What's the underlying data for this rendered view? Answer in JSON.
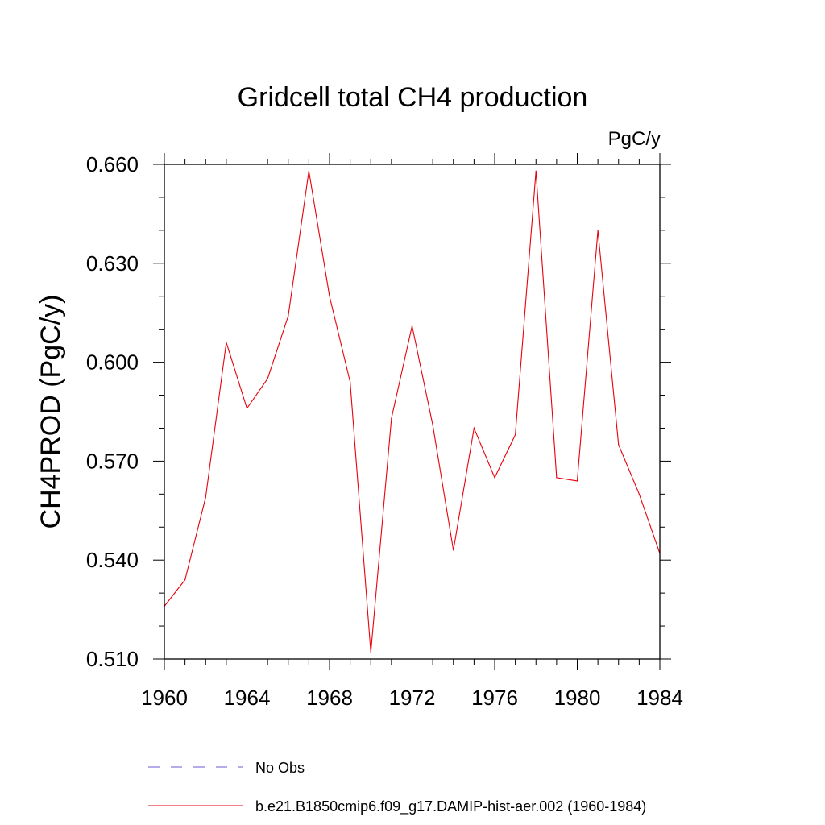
{
  "chart_data": {
    "type": "line",
    "title": "Gridcell total CH4 production",
    "units_label": "PgC/y",
    "ylabel": "CH4PROD  (PgC/y)",
    "xlabel": "",
    "xlim": [
      1960,
      1984
    ],
    "ylim": [
      0.51,
      0.66
    ],
    "x_ticks": [
      1960,
      1964,
      1968,
      1972,
      1976,
      1980,
      1984
    ],
    "x_tick_labels": [
      "1960",
      "1964",
      "1968",
      "1972",
      "1976",
      "1980",
      "1984"
    ],
    "y_ticks": [
      0.51,
      0.54,
      0.57,
      0.6,
      0.63,
      0.66
    ],
    "y_tick_labels": [
      "0.510",
      "0.540",
      "0.570",
      "0.600",
      "0.630",
      "0.660"
    ],
    "grid": false,
    "legend_position": "bottom",
    "series": [
      {
        "name": "b.e21.B1850cmip6.f09_g17.DAMIP-hist-aer.002 (1960-1984)",
        "color": "#e8000b",
        "dash": "solid",
        "x": [
          1960,
          1961,
          1962,
          1963,
          1964,
          1965,
          1966,
          1967,
          1968,
          1969,
          1970,
          1971,
          1972,
          1973,
          1974,
          1975,
          1976,
          1977,
          1978,
          1979,
          1980,
          1981,
          1982,
          1983,
          1984
        ],
        "values": [
          0.526,
          0.534,
          0.559,
          0.606,
          0.586,
          0.595,
          0.614,
          0.658,
          0.62,
          0.594,
          0.512,
          0.583,
          0.611,
          0.581,
          0.543,
          0.58,
          0.565,
          0.578,
          0.658,
          0.565,
          0.564,
          0.64,
          0.575,
          0.56,
          0.542
        ]
      },
      {
        "name": "No Obs",
        "color": "#6a5acd",
        "dash": "dashed",
        "x": [],
        "values": []
      }
    ]
  }
}
